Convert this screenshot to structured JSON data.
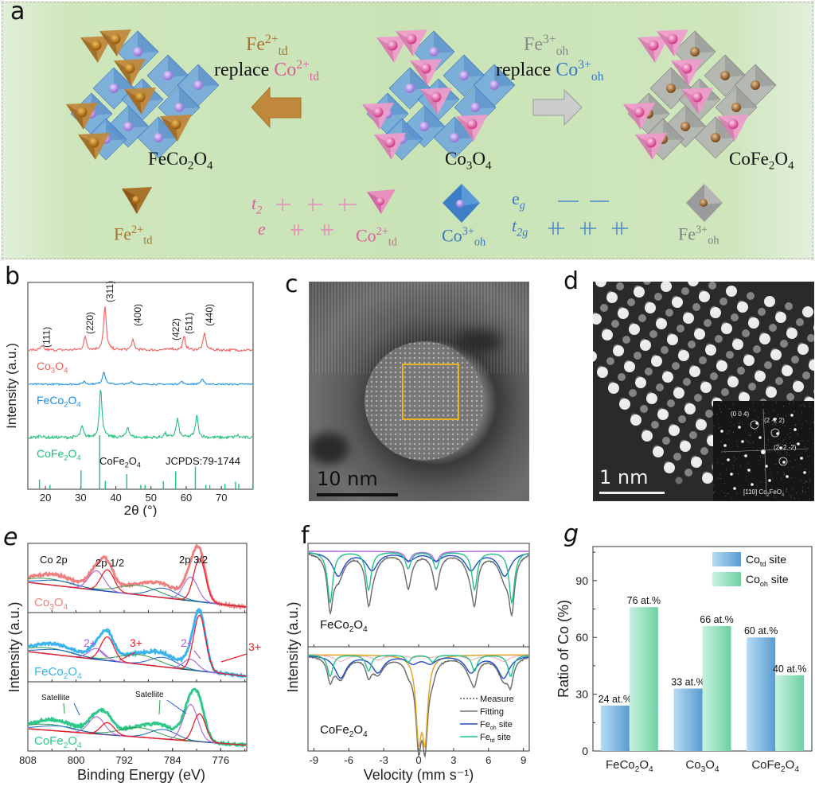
{
  "panels": {
    "a": {
      "letter": "a",
      "structures": [
        {
          "name": "FeCo2O4",
          "base": "FeCo",
          "sub1": "2",
          "mid": "O",
          "sub2": "4"
        },
        {
          "name": "Co3O4",
          "base": "Co",
          "sub1": "3",
          "mid": "O",
          "sub2": "4"
        },
        {
          "name": "CoFe2O4",
          "base": "CoFe",
          "sub1": "2",
          "mid": "O",
          "sub2": "4"
        }
      ],
      "left_arrow": {
        "ion": "Fe",
        "sup": "2+",
        "sub": "td",
        "verb": "replace",
        "target": "Co",
        "target_sup": "2+",
        "target_sub": "td"
      },
      "right_arrow": {
        "ion": "Fe",
        "sup": "3+",
        "sub": "oh",
        "verb": "replace",
        "target": "Co",
        "target_sup": "3+",
        "target_sub": "oh"
      },
      "ion_labels": [
        {
          "ion": "Fe",
          "sup": "2+",
          "sub": "td"
        },
        {
          "ion": "Co",
          "sup": "2+",
          "sub": "td"
        },
        {
          "ion": "Co",
          "sup": "3+",
          "sub": "oh"
        },
        {
          "ion": "Fe",
          "sup": "3+",
          "sub": "oh"
        }
      ],
      "orbitals_td": {
        "upper": "t",
        "upper_sub": "2",
        "lower": "e"
      },
      "orbitals_oh": {
        "upper": "e",
        "upper_sub": "g",
        "lower": "t",
        "lower_sub": "2g"
      },
      "colors": {
        "fe2": "#a8732a",
        "co2": "#d8629e",
        "co3": "#3b78c2",
        "fe3": "#808080"
      }
    },
    "c": {
      "letter": "c",
      "scale_bar": "10 nm"
    },
    "d": {
      "letter": "d",
      "scale_bar": "1 nm",
      "fft_labels": [
        "(0 0 4)",
        "(2 -2 2)",
        "(2 -2 -2)"
      ],
      "zone_axis": "[110] Co",
      "zone_sub": "2",
      "zone_rest": "FeO",
      "zone_sub2": "4"
    }
  },
  "chart_data": [
    {
      "panel": "b",
      "type": "line",
      "title": "",
      "xlabel": "2θ (°)",
      "ylabel": "Intensity (a.u.)",
      "xlim": [
        15,
        79
      ],
      "xticks": [
        20,
        30,
        40,
        50,
        60,
        70
      ],
      "series": [
        {
          "name": "Co3O4",
          "label_base": "Co",
          "s1": "3",
          "m": "O",
          "s2": "4",
          "color": "#f0605e",
          "peaks": [
            [
              19,
              0.08
            ],
            [
              31.3,
              0.3
            ],
            [
              36.9,
              1.0
            ],
            [
              44.8,
              0.22
            ],
            [
              55.7,
              0.05
            ],
            [
              59.4,
              0.3
            ],
            [
              65.2,
              0.38
            ]
          ]
        },
        {
          "name": "FeCo2O4",
          "label_base": "FeCo",
          "s1": "2",
          "m": "O",
          "s2": "4",
          "color": "#1a8fe6",
          "peaks": [
            [
              31,
              0.12
            ],
            [
              36.6,
              0.55
            ],
            [
              44.5,
              0.12
            ],
            [
              58.7,
              0.12
            ],
            [
              64.5,
              0.22
            ]
          ]
        },
        {
          "name": "CoFe2O4",
          "label_base": "CoFe",
          "s1": "2",
          "m": "O",
          "s2": "4",
          "color": "#1fc27a",
          "peaks": [
            [
              18.5,
              0.05
            ],
            [
              30.4,
              0.22
            ],
            [
              35.7,
              1.0
            ],
            [
              43.4,
              0.22
            ],
            [
              54,
              0.08
            ],
            [
              57.5,
              0.38
            ],
            [
              63,
              0.45
            ],
            [
              74.5,
              0.05
            ]
          ]
        }
      ],
      "peak_labels": [
        {
          "hkl": "(111)",
          "x": 19
        },
        {
          "hkl": "(220)",
          "x": 31.3
        },
        {
          "hkl": "(311)",
          "x": 36.9
        },
        {
          "hkl": "(400)",
          "x": 44.8
        },
        {
          "hkl": "(422)",
          "x": 55.7
        },
        {
          "hkl": "(511)",
          "x": 59.4
        },
        {
          "hkl": "(440)",
          "x": 65.2
        }
      ],
      "reference": {
        "label_base": "CoFe",
        "s1": "2",
        "m": "O",
        "s2": "4",
        "card": "JCPDS:79-1744",
        "color": "#1fc27a",
        "lines": [
          [
            18.3,
            0.18
          ],
          [
            21.3,
            0.08
          ],
          [
            30.1,
            0.35
          ],
          [
            35.4,
            1.0
          ],
          [
            37.0,
            0.15
          ],
          [
            43.1,
            0.28
          ],
          [
            47.1,
            0.08
          ],
          [
            48.3,
            0.08
          ],
          [
            53.5,
            0.15
          ],
          [
            57.0,
            0.33
          ],
          [
            62.6,
            0.42
          ],
          [
            65.6,
            0.08
          ],
          [
            66.7,
            0.08
          ],
          [
            71.0,
            0.1
          ],
          [
            74.0,
            0.14
          ],
          [
            74.9,
            0.1
          ],
          [
            78.9,
            0.1
          ]
        ]
      }
    },
    {
      "panel": "e",
      "type": "line",
      "title": "",
      "xlabel": "Binding Energy (eV)",
      "ylabel": "Intensity (a.u.)",
      "xlim": [
        808,
        773
      ],
      "xticks": [
        808,
        800,
        792,
        784,
        776
      ],
      "annotations": {
        "element": "Co 2p",
        "p12": "2p 1/2",
        "p32": "2p 3/2",
        "two_plus": "2+",
        "three_plus": "3+",
        "satellite": "Satellite"
      },
      "series": [
        {
          "name": "Co3O4",
          "label_base": "Co",
          "s1": "3",
          "m": "O",
          "s2": "4",
          "color": "#f08080"
        },
        {
          "name": "FeCo2O4",
          "label_base": "FeCo",
          "s1": "2",
          "m": "O",
          "s2": "4",
          "color": "#3ab4ee"
        },
        {
          "name": "CoFe2O4",
          "label_base": "CoFe",
          "s1": "2",
          "m": "O",
          "s2": "4",
          "color": "#2ec98a"
        }
      ],
      "components": {
        "co3": {
          "center_low": 779.5,
          "center_high": 794.8,
          "color": "#e8202a"
        },
        "co2": {
          "center_low": 781,
          "center_high": 796.6,
          "color": "#a860e0"
        },
        "sat": {
          "color": "#1f5fc8"
        },
        "sat2": {
          "color": "#2f9b4f"
        }
      }
    },
    {
      "panel": "f",
      "type": "line",
      "title": "",
      "xlabel": "Velocity (mm s⁻¹)",
      "ylabel": "Intensity (a.u.)",
      "xlim": [
        -9.5,
        9.5
      ],
      "xticks": [
        -9,
        -6,
        -3,
        0,
        3,
        6,
        9
      ],
      "samples": [
        {
          "name": "FeCo2O4",
          "label_base": "FeCo",
          "s1": "2",
          "m": "O",
          "s2": "4"
        },
        {
          "name": "CoFe2O4",
          "label_base": "CoFe",
          "s1": "2",
          "m": "O",
          "s2": "4"
        }
      ],
      "legend": [
        {
          "label": "Measure",
          "sub": "",
          "suffix": "",
          "color": "#555555",
          "dash": true
        },
        {
          "label": "Fitting",
          "sub": "",
          "suffix": "",
          "color": "#6e6e6e",
          "dash": false
        },
        {
          "label": "Fe",
          "sub": "oh",
          "suffix": " site",
          "color": "#1f4fc8",
          "dash": false
        },
        {
          "label": "Fe",
          "sub": "td",
          "suffix": " site",
          "color": "#1fc28a",
          "dash": false
        }
      ],
      "sextets": {
        "FeCo2O4": {
          "td": [
            -7.6,
            -4.3,
            -0.9,
            1.5,
            4.8,
            8.0
          ],
          "oh": [
            -6.9,
            -4.0,
            -0.8,
            1.5,
            4.5,
            7.4
          ],
          "doublet": [
            -0.9,
            1.5
          ]
        },
        "CoFe2O4": {
          "td": [
            -7.6,
            -4.3,
            -0.9,
            1.2,
            4.8,
            7.9
          ],
          "oh": [
            -6.7,
            -3.5,
            -0.5,
            1.0,
            4.5,
            7.3
          ],
          "doublet": [
            0.0,
            0.55
          ]
        }
      }
    },
    {
      "panel": "g",
      "type": "bar",
      "title": "",
      "xlabel": "",
      "ylabel": "Ratio of Co (%)",
      "ylim": [
        0,
        108
      ],
      "yticks": [
        0,
        30,
        60,
        90
      ],
      "categories": [
        {
          "base": "FeCo",
          "s1": "2",
          "m": "O",
          "s2": "4"
        },
        {
          "base": "Co",
          "s1": "3",
          "m": "O",
          "s2": "4"
        },
        {
          "base": "CoFe",
          "s1": "2",
          "m": "O",
          "s2": "4"
        }
      ],
      "series": [
        {
          "name": "Co",
          "sub": "td",
          "suffix": " site",
          "values": [
            24,
            33,
            60
          ],
          "labels": [
            "24 at.%",
            "33 at.%",
            "60 at.%"
          ],
          "color_a": "#b5dcf5",
          "color_b": "#5a9bd0"
        },
        {
          "name": "Co",
          "sub": "oh",
          "suffix": " site",
          "values": [
            76,
            66,
            40
          ],
          "labels": [
            "76 at.%",
            "66 at.%",
            "40 at.%"
          ],
          "color_a": "#c7f2df",
          "color_b": "#6fd0a4"
        }
      ],
      "legend_position": "top-right"
    }
  ]
}
